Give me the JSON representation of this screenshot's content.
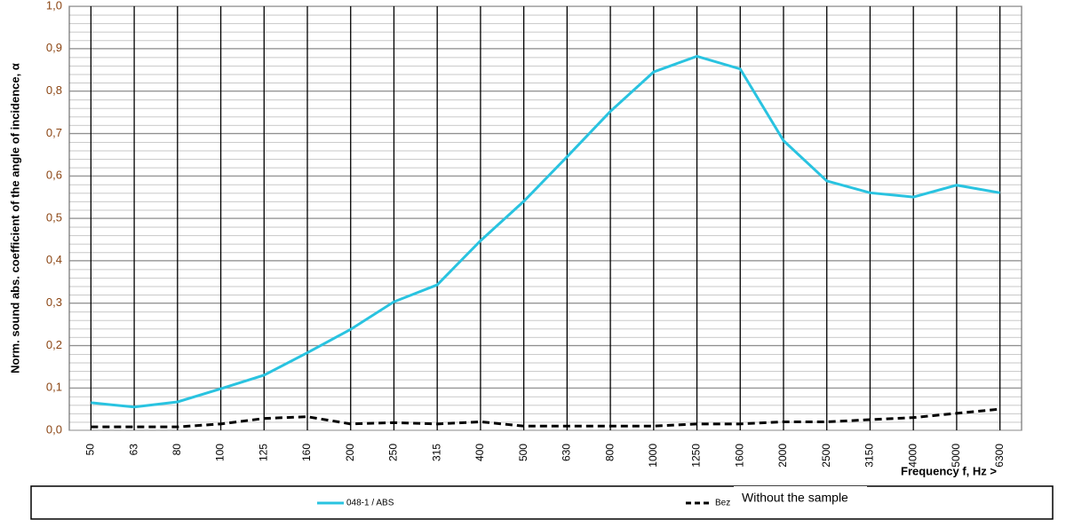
{
  "chart_data": {
    "type": "line",
    "x_label": "Frequency f, Hz >",
    "y_label": "Norm. sound abs. coefficient of the angle of incidence, α",
    "categories": [
      "50",
      "63",
      "80",
      "100",
      "125",
      "160",
      "200",
      "250",
      "315",
      "400",
      "500",
      "630",
      "800",
      "1000",
      "1250",
      "1600",
      "2000",
      "2500",
      "3150",
      "4000",
      "5000",
      "6300"
    ],
    "series": [
      {
        "name": "048-1 / ABS",
        "color": "#29c3e0",
        "values": [
          0.065,
          0.055,
          0.067,
          0.098,
          0.13,
          0.183,
          0.238,
          0.303,
          0.343,
          0.447,
          0.54,
          0.645,
          0.752,
          0.845,
          0.882,
          0.852,
          0.683,
          0.588,
          0.56,
          0.55,
          0.578,
          0.56
        ]
      },
      {
        "name": "Bez",
        "color": "#000000",
        "dashed": true,
        "values": [
          0.008,
          0.008,
          0.008,
          0.015,
          0.028,
          0.032,
          0.015,
          0.018,
          0.015,
          0.02,
          0.01,
          0.01,
          0.01,
          0.01,
          0.015,
          0.015,
          0.02,
          0.02,
          0.025,
          0.03,
          0.04,
          0.05
        ]
      }
    ],
    "annotation": "Without the sample",
    "ylim": [
      0,
      1
    ],
    "yticks": [
      {
        "value": 0,
        "label": "0,0"
      },
      {
        "value": 0.1,
        "label": "0,1"
      },
      {
        "value": 0.2,
        "label": "0,2"
      },
      {
        "value": 0.3,
        "label": "0,3"
      },
      {
        "value": 0.4,
        "label": "0,4"
      },
      {
        "value": 0.5,
        "label": "0,5"
      },
      {
        "value": 0.6,
        "label": "0,6"
      },
      {
        "value": 0.7,
        "label": "0,7"
      },
      {
        "value": 0.8,
        "label": "0,8"
      },
      {
        "value": 0.9,
        "label": "0,9"
      },
      {
        "value": 1,
        "label": "1,0"
      }
    ],
    "grid": true
  }
}
